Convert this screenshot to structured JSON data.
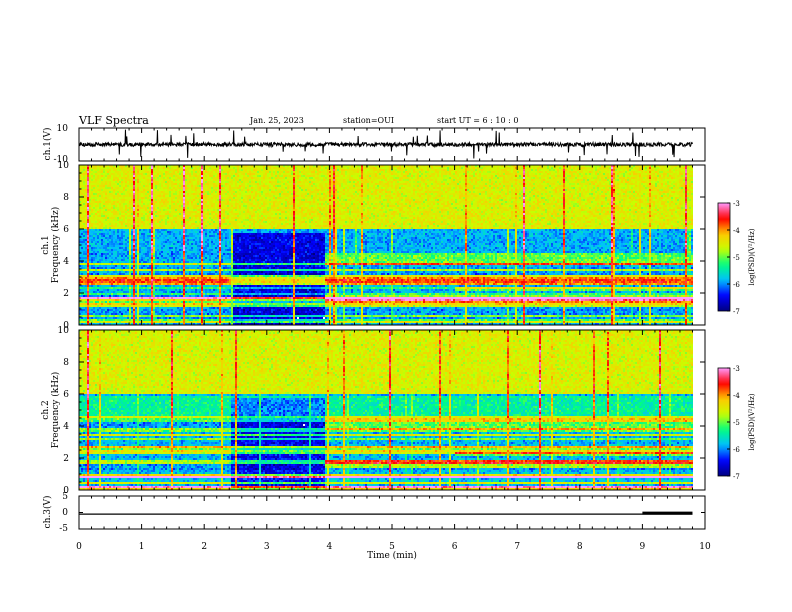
{
  "header": {
    "title": "VLF Spectra",
    "date": "Jan. 25, 2023",
    "station": "station=OUI",
    "start_ut": "start  UT =   6 : 10 : 0"
  },
  "chart_data": [
    {
      "type": "line",
      "name": "waveform-ch1",
      "ylabel": "ch.1(V)",
      "ylim": [
        -10,
        10
      ],
      "yticks": [
        "10",
        "-10"
      ],
      "xlim": [
        0,
        10
      ],
      "data_end_min": 9.8,
      "baseline": 0
    },
    {
      "type": "heatmap",
      "name": "spectrogram-ch1",
      "ylabel": "ch.1\nFrequency (kHz)",
      "ylim": [
        0,
        10
      ],
      "yticks": [
        "0",
        "2",
        "4",
        "6",
        "8",
        "10"
      ],
      "xlim": [
        0,
        10
      ],
      "colorbar": {
        "ticks": [
          "-3",
          "-4",
          "-5",
          "-6",
          "-7"
        ],
        "label": "log(PSD)(V²/Hz)",
        "range": [
          -7,
          -3
        ]
      }
    },
    {
      "type": "heatmap",
      "name": "spectrogram-ch2",
      "ylabel": "ch.2\nFrequency (kHz)",
      "ylim": [
        0,
        10
      ],
      "yticks": [
        "0",
        "2",
        "4",
        "6",
        "8",
        "10"
      ],
      "xlim": [
        0,
        10
      ],
      "colorbar": {
        "ticks": [
          "-3",
          "-4",
          "-5",
          "-6",
          "-7"
        ],
        "label": "log(PSD)(V²/Hz)",
        "range": [
          -7,
          -3
        ]
      }
    },
    {
      "type": "line",
      "name": "waveform-ch3",
      "ylabel": "ch.3(V)",
      "ylim": [
        -5,
        5
      ],
      "yticks": [
        "5",
        "0",
        "-5"
      ],
      "xlim": [
        0,
        10
      ],
      "level_v": -0.5,
      "thick_segment_min": [
        9.0,
        9.8
      ]
    }
  ],
  "xaxis": {
    "label": "Time  (min)",
    "ticks": [
      "0",
      "1",
      "2",
      "3",
      "4",
      "5",
      "6",
      "7",
      "8",
      "9",
      "10"
    ]
  },
  "colors": {
    "ink": "#000000",
    "colormap": [
      "#00007f",
      "#0000ff",
      "#00bfff",
      "#00ff80",
      "#c8ff00",
      "#ffc800",
      "#ff0000",
      "#ff9bff"
    ]
  }
}
